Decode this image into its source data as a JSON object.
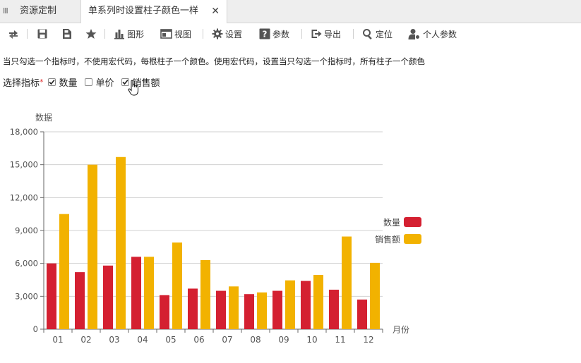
{
  "tabs": {
    "handle": "III",
    "items": [
      {
        "label": "资源定制"
      },
      {
        "label": "单系列时设置柱子颜色一样",
        "close": "✕"
      }
    ]
  },
  "toolbar": {
    "items": [
      {
        "icon": "refresh-icon"
      },
      {
        "icon": "save-icon"
      },
      {
        "icon": "save-as-icon"
      },
      {
        "icon": "star-icon"
      },
      {
        "icon": "chart-icon",
        "label": "图形"
      },
      {
        "icon": "view-icon",
        "label": "视图"
      },
      {
        "icon": "gear-icon",
        "label": "设置"
      },
      {
        "icon": "help-icon",
        "label": "参数"
      },
      {
        "icon": "export-icon",
        "label": "导出"
      },
      {
        "icon": "locate-icon",
        "label": "定位"
      },
      {
        "icon": "user-params-icon",
        "label": "个人参数"
      }
    ]
  },
  "description": "当只勾选一个指标时，不使用宏代码，每根柱子一个颜色。使用宏代码，设置当只勾选一个指标时，所有柱子一个颜色",
  "selector": {
    "label": "选择指标",
    "required_mark": "*",
    "options": [
      {
        "label": "数量",
        "checked": true
      },
      {
        "label": "单价",
        "checked": false
      },
      {
        "label": "销售额",
        "checked": true
      }
    ]
  },
  "colors": {
    "accent_red": "#d42031",
    "accent_yellow": "#f2b200",
    "tab_active_bg": "#ffffff",
    "tabbar_bg": "#eeeeee"
  },
  "chart_data": {
    "type": "bar",
    "ylabel": "数据",
    "xlabel": "月份",
    "categories": [
      "01",
      "02",
      "03",
      "04",
      "05",
      "06",
      "07",
      "08",
      "09",
      "10",
      "11",
      "12"
    ],
    "ylim": [
      0,
      18000
    ],
    "yticks": [
      0,
      3000,
      6000,
      9000,
      12000,
      15000,
      18000
    ],
    "ytick_labels": [
      "0",
      "3,000",
      "6,000",
      "9,000",
      "12,000",
      "15,000",
      "18,000"
    ],
    "grid": true,
    "legend_position": "right",
    "series": [
      {
        "name": "数量",
        "color": "#d42031",
        "values": [
          6000,
          5200,
          5800,
          6600,
          3100,
          3700,
          3500,
          3200,
          3500,
          4400,
          3600,
          2700
        ]
      },
      {
        "name": "销售额",
        "color": "#f2b200",
        "values": [
          10500,
          15000,
          15700,
          6600,
          7900,
          6300,
          3900,
          3350,
          4450,
          4950,
          8450,
          6050
        ]
      }
    ]
  }
}
